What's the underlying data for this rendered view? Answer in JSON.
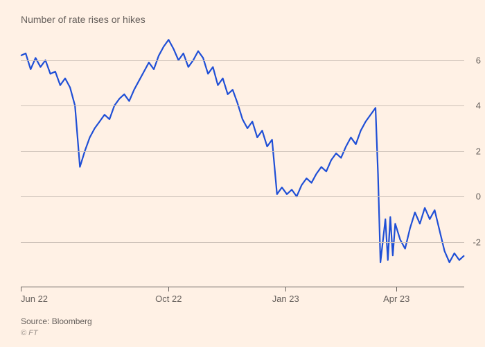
{
  "chart": {
    "type": "line",
    "subtitle": "Number of rate rises or hikes",
    "background_color": "#fff1e5",
    "grid_color": "#ccc0b7",
    "axis_color": "#66605c",
    "line_color": "#1f4fd6",
    "line_width": 2.2,
    "y": {
      "min": -4,
      "max": 7,
      "ticks": [
        -2,
        0,
        2,
        4,
        6
      ]
    },
    "x": {
      "min": 0,
      "max": 360,
      "ticks": [
        {
          "pos": 0,
          "label": "Jun 22"
        },
        {
          "pos": 120,
          "label": "Oct 22"
        },
        {
          "pos": 215,
          "label": "Jan 23"
        },
        {
          "pos": 305,
          "label": "Apr 23"
        }
      ]
    },
    "series": [
      [
        0,
        6.2
      ],
      [
        4,
        6.3
      ],
      [
        8,
        5.6
      ],
      [
        12,
        6.1
      ],
      [
        16,
        5.7
      ],
      [
        20,
        6.0
      ],
      [
        24,
        5.4
      ],
      [
        28,
        5.5
      ],
      [
        32,
        4.9
      ],
      [
        36,
        5.2
      ],
      [
        40,
        4.8
      ],
      [
        44,
        4.0
      ],
      [
        48,
        1.3
      ],
      [
        52,
        2.0
      ],
      [
        56,
        2.6
      ],
      [
        60,
        3.0
      ],
      [
        64,
        3.3
      ],
      [
        68,
        3.6
      ],
      [
        72,
        3.4
      ],
      [
        76,
        4.0
      ],
      [
        80,
        4.3
      ],
      [
        84,
        4.5
      ],
      [
        88,
        4.2
      ],
      [
        92,
        4.7
      ],
      [
        96,
        5.1
      ],
      [
        100,
        5.5
      ],
      [
        104,
        5.9
      ],
      [
        108,
        5.6
      ],
      [
        112,
        6.2
      ],
      [
        116,
        6.6
      ],
      [
        120,
        6.9
      ],
      [
        124,
        6.5
      ],
      [
        128,
        6.0
      ],
      [
        132,
        6.3
      ],
      [
        136,
        5.7
      ],
      [
        140,
        6.0
      ],
      [
        144,
        6.4
      ],
      [
        148,
        6.1
      ],
      [
        152,
        5.4
      ],
      [
        156,
        5.7
      ],
      [
        160,
        4.9
      ],
      [
        164,
        5.2
      ],
      [
        168,
        4.5
      ],
      [
        172,
        4.7
      ],
      [
        176,
        4.1
      ],
      [
        180,
        3.4
      ],
      [
        184,
        3.0
      ],
      [
        188,
        3.3
      ],
      [
        192,
        2.6
      ],
      [
        196,
        2.9
      ],
      [
        200,
        2.2
      ],
      [
        204,
        2.5
      ],
      [
        208,
        0.1
      ],
      [
        212,
        0.4
      ],
      [
        216,
        0.1
      ],
      [
        220,
        0.3
      ],
      [
        224,
        0.0
      ],
      [
        228,
        0.5
      ],
      [
        232,
        0.8
      ],
      [
        236,
        0.6
      ],
      [
        240,
        1.0
      ],
      [
        244,
        1.3
      ],
      [
        248,
        1.1
      ],
      [
        252,
        1.6
      ],
      [
        256,
        1.9
      ],
      [
        260,
        1.7
      ],
      [
        264,
        2.2
      ],
      [
        268,
        2.6
      ],
      [
        272,
        2.3
      ],
      [
        276,
        2.9
      ],
      [
        280,
        3.3
      ],
      [
        284,
        3.6
      ],
      [
        288,
        3.9
      ],
      [
        290,
        1.0
      ],
      [
        292,
        -2.9
      ],
      [
        296,
        -1.0
      ],
      [
        298,
        -2.8
      ],
      [
        300,
        -0.9
      ],
      [
        302,
        -2.6
      ],
      [
        304,
        -1.2
      ],
      [
        308,
        -1.9
      ],
      [
        312,
        -2.3
      ],
      [
        316,
        -1.4
      ],
      [
        320,
        -0.7
      ],
      [
        324,
        -1.2
      ],
      [
        328,
        -0.5
      ],
      [
        332,
        -1.0
      ],
      [
        336,
        -0.6
      ],
      [
        340,
        -1.5
      ],
      [
        344,
        -2.4
      ],
      [
        348,
        -2.9
      ],
      [
        352,
        -2.5
      ],
      [
        356,
        -2.8
      ],
      [
        360,
        -2.6
      ]
    ]
  },
  "footer": {
    "source": "Source: Bloomberg",
    "copyright": "© FT"
  }
}
